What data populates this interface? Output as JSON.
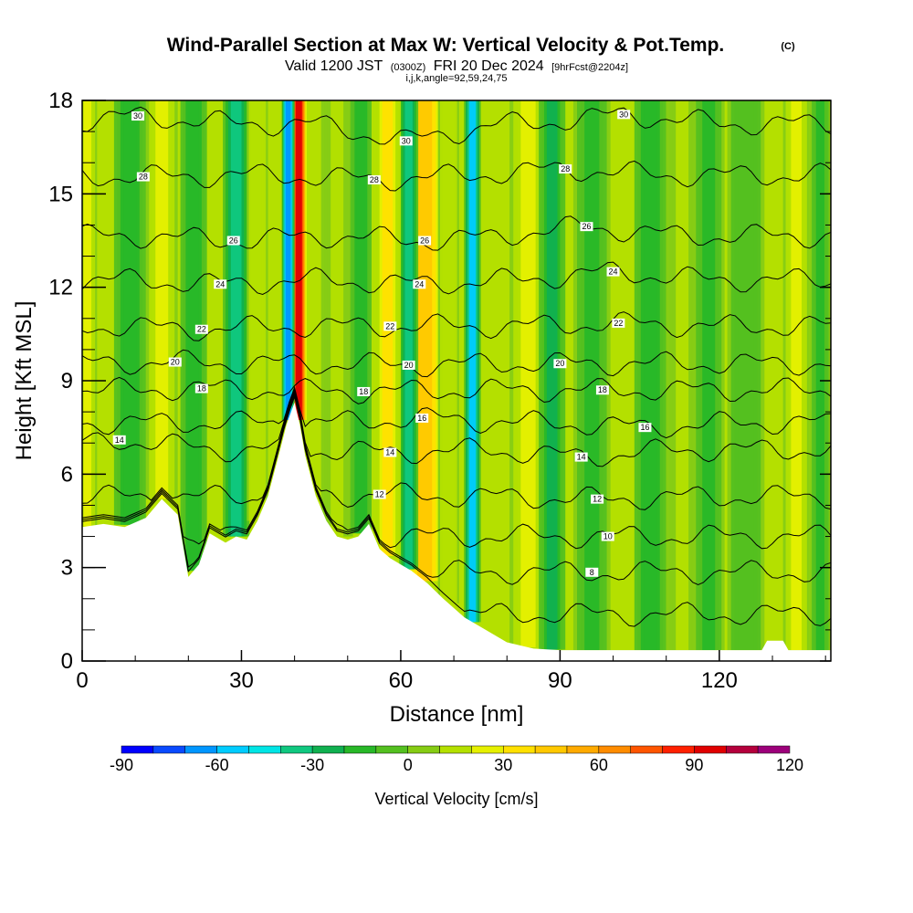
{
  "header": {
    "title": "Wind-Parallel Section at Max W: Vertical Velocity & Pot.Temp.",
    "copyright": "(C)",
    "valid_prefix": "Valid 1200 JST",
    "valid_utc": "(0300Z)",
    "valid_date": "FRI 20 Dec 2024",
    "forecast": "[9hrFcst@2204z]",
    "params": "i,j,k,angle=92,59,24,75"
  },
  "chart_data": {
    "type": "heatmap",
    "xlabel": "Distance [nm]",
    "ylabel": "Height [Kft MSL]",
    "xlim": [
      0,
      141
    ],
    "ylim": [
      0,
      18
    ],
    "x_ticks": [
      0,
      30,
      60,
      90,
      120
    ],
    "y_ticks": [
      0,
      3,
      6,
      9,
      12,
      15,
      18
    ],
    "x_minor_step": 10,
    "y_minor_step": 1,
    "field": "Vertical Velocity [cm/s]",
    "colorbar": {
      "title": "Vertical Velocity [cm/s]",
      "min": -90,
      "max": 120,
      "step": 10,
      "tick_labels": [
        "-90",
        "-60",
        "-30",
        "0",
        "30",
        "60",
        "90",
        "120"
      ],
      "tick_values": [
        -90,
        -60,
        -30,
        0,
        30,
        60,
        90,
        120
      ],
      "colors": [
        "#0000ff",
        "#0a4aff",
        "#0096ff",
        "#00ccff",
        "#00e5e5",
        "#10c880",
        "#10b050",
        "#28b828",
        "#54c020",
        "#86cc14",
        "#b4e000",
        "#e6f000",
        "#ffe000",
        "#ffc800",
        "#ffaa00",
        "#ff8c00",
        "#ff5500",
        "#ff2000",
        "#e00000",
        "#b4003c",
        "#9c007a"
      ]
    },
    "terrain": [
      [
        0,
        4.3
      ],
      [
        4,
        4.4
      ],
      [
        8,
        4.3
      ],
      [
        12,
        4.6
      ],
      [
        15,
        5.2
      ],
      [
        18,
        4.7
      ],
      [
        20,
        2.7
      ],
      [
        22,
        3.1
      ],
      [
        24,
        4.1
      ],
      [
        27,
        3.8
      ],
      [
        29,
        4.0
      ],
      [
        31,
        3.9
      ],
      [
        33,
        4.5
      ],
      [
        35,
        5.3
      ],
      [
        37,
        6.6
      ],
      [
        38.5,
        7.6
      ],
      [
        40,
        8.3
      ],
      [
        41,
        7.6
      ],
      [
        42,
        6.6
      ],
      [
        44,
        5.3
      ],
      [
        46,
        4.5
      ],
      [
        48,
        4.0
      ],
      [
        50,
        3.9
      ],
      [
        52,
        4.0
      ],
      [
        54,
        4.4
      ],
      [
        56,
        3.6
      ],
      [
        58,
        3.3
      ],
      [
        60,
        3.1
      ],
      [
        62,
        2.9
      ],
      [
        65,
        2.5
      ],
      [
        68,
        2.0
      ],
      [
        72,
        1.4
      ],
      [
        76,
        1.0
      ],
      [
        80,
        0.6
      ],
      [
        85,
        0.4
      ],
      [
        90,
        0.35
      ],
      [
        100,
        0.35
      ],
      [
        110,
        0.35
      ],
      [
        128,
        0.35
      ],
      [
        129,
        0.65
      ],
      [
        132,
        0.65
      ],
      [
        133,
        0.35
      ],
      [
        141,
        0.35
      ]
    ],
    "velocity_bands": [
      {
        "x": 40.8,
        "w": 1.5,
        "w_cms": 95
      },
      {
        "x": 38.8,
        "w": 1.2,
        "w_cms": -70
      },
      {
        "x": 64.5,
        "w": 3.5,
        "w_cms": 45
      },
      {
        "x": 61.5,
        "w": 1.8,
        "w_cms": -35
      },
      {
        "x": 73.5,
        "w": 1.6,
        "w_cms": -55
      },
      {
        "x": 57.5,
        "w": 2.5,
        "w_cms": 30
      },
      {
        "x": 84,
        "w": 3.5,
        "w_cms": 20
      },
      {
        "x": 88.5,
        "w": 2.5,
        "w_cms": -25
      },
      {
        "x": 29,
        "w": 2.5,
        "w_cms": -40
      },
      {
        "x": 15,
        "w": 3.0,
        "w_cms": 20
      },
      {
        "x": 9,
        "w": 3.0,
        "w_cms": -20
      },
      {
        "x": 1,
        "w": 1.8,
        "w_cms": 20
      },
      {
        "x": 48,
        "w": 3.0,
        "w_cms": 10
      },
      {
        "x": 69,
        "w": 2.0,
        "w_cms": 15
      },
      {
        "x": 52.5,
        "w": 2.0,
        "w_cms": -20
      },
      {
        "x": 21,
        "w": 2.5,
        "w_cms": -20
      },
      {
        "x": 33,
        "w": 2.0,
        "w_cms": 15
      },
      {
        "x": 96,
        "w": 3.5,
        "w_cms": -15
      },
      {
        "x": 107,
        "w": 3.0,
        "w_cms": -20
      },
      {
        "x": 113,
        "w": 3.0,
        "w_cms": 10
      },
      {
        "x": 118,
        "w": 3.0,
        "w_cms": -15
      },
      {
        "x": 125,
        "w": 3.5,
        "w_cms": -10
      },
      {
        "x": 134.5,
        "w": 2.5,
        "w_cms": 20
      },
      {
        "x": 139,
        "w": 2.0,
        "w_cms": -15
      }
    ],
    "theta_contours": [
      {
        "theta": 6,
        "labeled": false
      },
      {
        "theta": 8,
        "labeled": true,
        "label_x": 96,
        "label_y": 2.85
      },
      {
        "theta": 10,
        "labeled": true,
        "label_x": 99,
        "label_y": 4.0
      },
      {
        "theta": 12,
        "labeled": true,
        "label_x": 97,
        "label_y": 5.2
      },
      {
        "theta": 12,
        "labeled": true,
        "label_x": 56,
        "label_y": 5.35
      },
      {
        "theta": 14,
        "labeled": true,
        "label_x": 94,
        "label_y": 6.55
      },
      {
        "theta": 14,
        "labeled": true,
        "label_x": 58,
        "label_y": 6.7
      },
      {
        "theta": 14,
        "labeled": true,
        "label_x": 7,
        "label_y": 7.1
      },
      {
        "theta": 16,
        "labeled": true,
        "label_x": 106,
        "label_y": 7.5
      },
      {
        "theta": 16,
        "labeled": true,
        "label_x": 64,
        "label_y": 7.8
      },
      {
        "theta": 18,
        "labeled": true,
        "label_x": 98,
        "label_y": 8.7
      },
      {
        "theta": 18,
        "labeled": true,
        "label_x": 53,
        "label_y": 8.65
      },
      {
        "theta": 18,
        "labeled": true,
        "label_x": 22.5,
        "label_y": 8.75
      },
      {
        "theta": 20,
        "labeled": true,
        "label_x": 90,
        "label_y": 9.55
      },
      {
        "theta": 20,
        "labeled": true,
        "label_x": 61.5,
        "label_y": 9.5
      },
      {
        "theta": 20,
        "labeled": true,
        "label_x": 17.5,
        "label_y": 9.6
      },
      {
        "theta": 22,
        "labeled": true,
        "label_x": 101,
        "label_y": 10.85
      },
      {
        "theta": 22,
        "labeled": true,
        "label_x": 58,
        "label_y": 10.75
      },
      {
        "theta": 22,
        "labeled": true,
        "label_x": 22.5,
        "label_y": 10.65
      },
      {
        "theta": 24,
        "labeled": true,
        "label_x": 100,
        "label_y": 12.5
      },
      {
        "theta": 24,
        "labeled": true,
        "label_x": 63.5,
        "label_y": 12.1
      },
      {
        "theta": 24,
        "labeled": true,
        "label_x": 26,
        "label_y": 12.1
      },
      {
        "theta": 26,
        "labeled": true,
        "label_x": 95,
        "label_y": 13.95
      },
      {
        "theta": 26,
        "labeled": true,
        "label_x": 64.5,
        "label_y": 13.5
      },
      {
        "theta": 26,
        "labeled": true,
        "label_x": 28.5,
        "label_y": 13.5
      },
      {
        "theta": 28,
        "labeled": true,
        "label_x": 91,
        "label_y": 15.8
      },
      {
        "theta": 28,
        "labeled": true,
        "label_x": 55,
        "label_y": 15.45
      },
      {
        "theta": 28,
        "labeled": true,
        "label_x": 11.5,
        "label_y": 15.55
      },
      {
        "theta": 30,
        "labeled": true,
        "label_x": 102,
        "label_y": 17.55
      },
      {
        "theta": 30,
        "labeled": true,
        "label_x": 61,
        "label_y": 16.7
      },
      {
        "theta": 30,
        "labeled": true,
        "label_x": 10.5,
        "label_y": 17.5
      }
    ]
  }
}
